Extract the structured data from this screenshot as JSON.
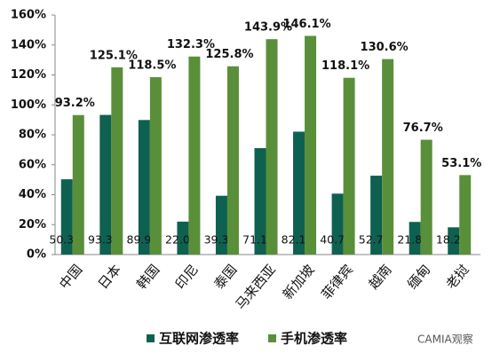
{
  "chart_data": {
    "type": "bar",
    "categories": [
      "中国",
      "日本",
      "韩国",
      "印尼",
      "泰国",
      "马来西亚",
      "新加坡",
      "菲律宾",
      "越南",
      "缅甸",
      "老挝"
    ],
    "series": [
      {
        "name": "互联网渗透率",
        "color": "#0e6150",
        "values": [
          50.3,
          93.3,
          89.9,
          22.0,
          39.3,
          71.1,
          82.1,
          40.7,
          52.7,
          21.8,
          18.2
        ],
        "value_labels": [
          "50.3%",
          "93.3%",
          "89.9%",
          "22.0%",
          "39.3%",
          "71.1%",
          "82.1%",
          "40.7%",
          "52.7%",
          "21.8%",
          "18.2%"
        ]
      },
      {
        "name": "手机渗透率",
        "color": "#5a8f3a",
        "values": [
          93.2,
          125.1,
          118.5,
          132.3,
          125.8,
          143.9,
          146.1,
          118.1,
          130.6,
          76.7,
          53.1
        ],
        "value_labels": [
          "93.2%",
          "125.1%",
          "118.5%",
          "132.3%",
          "125.8%",
          "143.9%",
          "146.1%",
          "118.1%",
          "130.6%",
          "76.7%",
          "53.1%"
        ]
      }
    ],
    "ylim": [
      0,
      160
    ],
    "yticks": [
      {
        "value": 0,
        "label": "0%"
      },
      {
        "value": 20,
        "label": "20%"
      },
      {
        "value": 40,
        "label": "40%"
      },
      {
        "value": 60,
        "label": "60%"
      },
      {
        "value": 80,
        "label": "80%"
      },
      {
        "value": 100,
        "label": "100%"
      },
      {
        "value": 120,
        "label": "120%"
      },
      {
        "value": 140,
        "label": "140%"
      },
      {
        "value": 160,
        "label": "160%"
      }
    ],
    "grid": false,
    "legend": "bottom",
    "watermark": "CAMIA观察"
  }
}
